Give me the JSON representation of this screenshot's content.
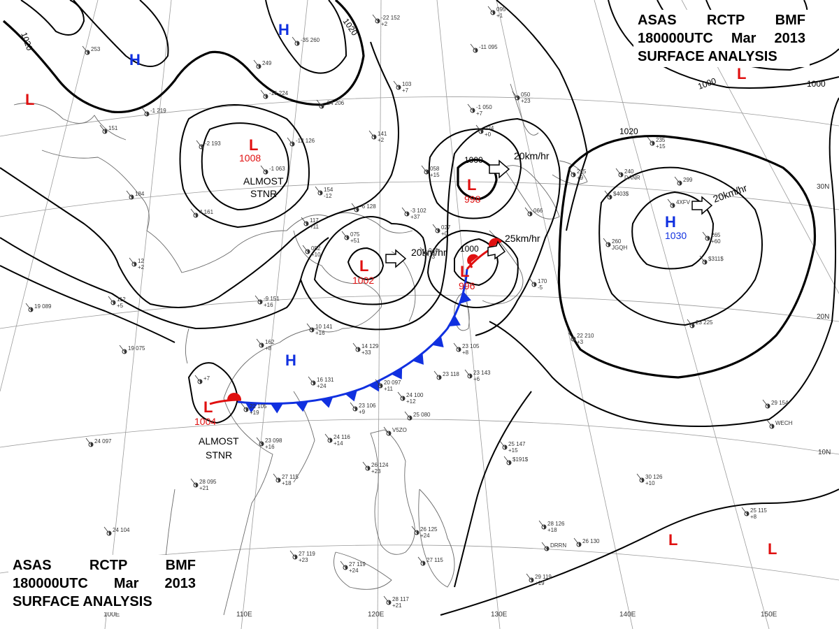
{
  "title": {
    "line1": [
      "ASAS",
      "RCTP",
      "BMF"
    ],
    "line2": [
      "180000UTC",
      "Mar",
      "2013"
    ],
    "line3": "SURFACE ANALYSIS"
  },
  "colors": {
    "high": "#1030e0",
    "low": "#e01010",
    "front_cold": "#1030e0",
    "front_warm": "#e01010",
    "isobar": "#000000"
  },
  "pressure_centers": [
    {
      "id": "h-nw",
      "type": "H",
      "letter": "H",
      "value": ""
    },
    {
      "id": "h-n",
      "type": "H",
      "letter": "H",
      "value": ""
    },
    {
      "id": "l-far-w",
      "type": "L",
      "letter": "L",
      "value": ""
    },
    {
      "id": "l-1008",
      "type": "L",
      "letter": "L",
      "value": "1008"
    },
    {
      "id": "l-998",
      "type": "L",
      "letter": "L",
      "value": "998"
    },
    {
      "id": "l-1002",
      "type": "L",
      "letter": "L",
      "value": "1002"
    },
    {
      "id": "l-996",
      "type": "L",
      "letter": "L",
      "value": "996"
    },
    {
      "id": "h-1030",
      "type": "H",
      "letter": "H",
      "value": "1030"
    },
    {
      "id": "l-ne",
      "type": "L",
      "letter": "L",
      "value": ""
    },
    {
      "id": "h-china",
      "type": "H",
      "letter": "H",
      "value": ""
    },
    {
      "id": "l-1004",
      "type": "L",
      "letter": "L",
      "value": "1004"
    },
    {
      "id": "l-se1",
      "type": "L",
      "letter": "L",
      "value": ""
    },
    {
      "id": "l-se2",
      "type": "L",
      "letter": "L",
      "value": ""
    }
  ],
  "annotations": {
    "almost_stnr_1": [
      "ALMOST",
      "STNR"
    ],
    "almost_stnr_2": [
      "ALMOST",
      "STNR"
    ]
  },
  "motions": [
    {
      "id": "m-998",
      "speed": "20km/hr"
    },
    {
      "id": "m-1002",
      "speed": "20km/hr"
    },
    {
      "id": "m-996",
      "speed": "25km/hr"
    },
    {
      "id": "m-1030",
      "speed": "20km/hr"
    }
  ],
  "isobar_labels": [
    {
      "id": "iso-1020-a",
      "value": "1020"
    },
    {
      "id": "iso-1020-b",
      "value": "1020"
    },
    {
      "id": "iso-1020-c",
      "value": "1020"
    },
    {
      "id": "iso-1000-a",
      "value": "1000"
    },
    {
      "id": "iso-1000-b",
      "value": "1000"
    },
    {
      "id": "iso-1000-c",
      "value": "1000"
    },
    {
      "id": "iso-1000-d",
      "value": "1000"
    }
  ],
  "grid_labels": {
    "longitudes": [
      "100E",
      "110E",
      "120E",
      "130E",
      "140E",
      "150E"
    ],
    "latitudes": [
      "30N",
      "20N",
      "10N"
    ]
  },
  "station_plots": [
    {
      "id": "s1",
      "lines": [
        "-22 152",
        "+2"
      ]
    },
    {
      "id": "s2",
      "lines": [
        "095",
        "+1"
      ]
    },
    {
      "id": "s3",
      "lines": [
        "-35 260"
      ]
    },
    {
      "id": "s4",
      "lines": [
        "253"
      ]
    },
    {
      "id": "s5",
      "lines": [
        "249"
      ]
    },
    {
      "id": "s6",
      "lines": [
        "-15 224"
      ]
    },
    {
      "id": "s7",
      "lines": [
        "-24 206"
      ]
    },
    {
      "id": "s8",
      "lines": [
        "103",
        "+7"
      ]
    },
    {
      "id": "s9",
      "lines": [
        "-11 095"
      ]
    },
    {
      "id": "s10",
      "lines": [
        "-1 219"
      ]
    },
    {
      "id": "s11",
      "lines": [
        "151"
      ]
    },
    {
      "id": "s12",
      "lines": [
        "-1 050",
        "+7"
      ]
    },
    {
      "id": "s13",
      "lines": [
        "050",
        "+23"
      ]
    },
    {
      "id": "s14",
      "lines": [
        "-2 193"
      ]
    },
    {
      "id": "s15",
      "lines": [
        "-12 126"
      ]
    },
    {
      "id": "s16",
      "lines": [
        "141",
        "+2"
      ]
    },
    {
      "id": "s17",
      "lines": [
        "024",
        "+0"
      ]
    },
    {
      "id": "s18",
      "lines": [
        "235",
        "+15"
      ]
    },
    {
      "id": "s19",
      "lines": [
        "-1 063"
      ]
    },
    {
      "id": "s20",
      "lines": [
        "154",
        "-12"
      ]
    },
    {
      "id": "s21",
      "lines": [
        "058",
        "+15"
      ]
    },
    {
      "id": "s22",
      "lines": [
        "215",
        "+9"
      ]
    },
    {
      "id": "s23",
      "lines": [
        "240",
        "DANR"
      ]
    },
    {
      "id": "s24",
      "lines": [
        "299"
      ]
    },
    {
      "id": "s25",
      "lines": [
        "184"
      ]
    },
    {
      "id": "s26",
      "lines": [
        "4 161"
      ]
    },
    {
      "id": "s27",
      "lines": [
        "-6 128"
      ]
    },
    {
      "id": "s28",
      "lines": [
        "-3 102",
        "+37"
      ]
    },
    {
      "id": "s29",
      "lines": [
        "027",
        "+0"
      ]
    },
    {
      "id": "s30",
      "lines": [
        "066"
      ]
    },
    {
      "id": "s31",
      "lines": [
        "4XFV"
      ]
    },
    {
      "id": "s32",
      "lines": [
        "$403$"
      ]
    },
    {
      "id": "s33",
      "lines": [
        "117",
        "+11"
      ]
    },
    {
      "id": "s34",
      "lines": [
        "075",
        "+51"
      ]
    },
    {
      "id": "s35",
      "lines": [
        "044",
        "+3"
      ]
    },
    {
      "id": "s36",
      "lines": [
        "052",
        "+10"
      ]
    },
    {
      "id": "s37",
      "lines": [
        "260",
        "JGQH"
      ]
    },
    {
      "id": "s38",
      "lines": [
        "265",
        "+60"
      ]
    },
    {
      "id": "s39",
      "lines": [
        "$311$"
      ]
    },
    {
      "id": "s40",
      "lines": [
        "12",
        "+2"
      ]
    },
    {
      "id": "s41",
      "lines": [
        "112",
        "+5"
      ]
    },
    {
      "id": "s42",
      "lines": [
        "-9 151",
        "+16"
      ]
    },
    {
      "id": "s43",
      "lines": [
        "170",
        "-5"
      ]
    },
    {
      "id": "s44",
      "lines": [
        "19 089"
      ]
    },
    {
      "id": "s45",
      "lines": [
        "10 141",
        "+16"
      ]
    },
    {
      "id": "s46",
      "lines": [
        "162",
        "+8"
      ]
    },
    {
      "id": "s47",
      "lines": [
        "14 129",
        "+33"
      ]
    },
    {
      "id": "s48",
      "lines": [
        "23 105",
        "+8"
      ]
    },
    {
      "id": "s49",
      "lines": [
        "22 210",
        "+3"
      ]
    },
    {
      "id": "s50",
      "lines": [
        "23 225"
      ]
    },
    {
      "id": "s51",
      "lines": [
        "19 075"
      ]
    },
    {
      "id": "s52",
      "lines": [
        "16 131",
        "+24"
      ]
    },
    {
      "id": "s53",
      "lines": [
        "20 097",
        "+11"
      ]
    },
    {
      "id": "s54",
      "lines": [
        "23 118"
      ]
    },
    {
      "id": "s55",
      "lines": [
        "23 143",
        "+6"
      ]
    },
    {
      "id": "s56",
      "lines": [
        "+7"
      ]
    },
    {
      "id": "s57",
      "lines": [
        "22 105",
        "+19"
      ]
    },
    {
      "id": "s58",
      "lines": [
        "23 106",
        "+9"
      ]
    },
    {
      "id": "s59",
      "lines": [
        "24 100",
        "+12"
      ]
    },
    {
      "id": "s60",
      "lines": [
        "29 154"
      ]
    },
    {
      "id": "s61",
      "lines": [
        "WECH"
      ]
    },
    {
      "id": "s62",
      "lines": [
        "24 097"
      ]
    },
    {
      "id": "s63",
      "lines": [
        "23 098",
        "+16"
      ]
    },
    {
      "id": "s64",
      "lines": [
        "24 116",
        "+14"
      ]
    },
    {
      "id": "s65",
      "lines": [
        "25 147",
        "+15"
      ]
    },
    {
      "id": "s66",
      "lines": [
        "$191$"
      ]
    },
    {
      "id": "s67",
      "lines": [
        "27 115",
        "+18"
      ]
    },
    {
      "id": "s68",
      "lines": [
        "28 095",
        "+21"
      ]
    },
    {
      "id": "s69",
      "lines": [
        "26 124",
        "+23"
      ]
    },
    {
      "id": "s70",
      "lines": [
        "30 126",
        "+10"
      ]
    },
    {
      "id": "s71",
      "lines": [
        "24 104"
      ]
    },
    {
      "id": "s72",
      "lines": [
        "28 126",
        "+18"
      ]
    },
    {
      "id": "s73",
      "lines": [
        "26 125",
        "+24"
      ]
    },
    {
      "id": "s74",
      "lines": [
        "25 115",
        "+8"
      ]
    },
    {
      "id": "s75",
      "lines": [
        "26 130"
      ]
    },
    {
      "id": "s76",
      "lines": [
        "27 119",
        "+23"
      ]
    },
    {
      "id": "s77",
      "lines": [
        "27 119",
        "+24"
      ]
    },
    {
      "id": "s78",
      "lines": [
        "27 115"
      ]
    },
    {
      "id": "s79",
      "lines": [
        "29 119",
        "+19"
      ]
    },
    {
      "id": "s80",
      "lines": [
        "28 117",
        "+21"
      ]
    },
    {
      "id": "s81",
      "lines": [
        "V5ZO"
      ]
    },
    {
      "id": "s82",
      "lines": [
        "DRRN"
      ]
    },
    {
      "id": "s83",
      "lines": [
        "25 080"
      ]
    }
  ]
}
